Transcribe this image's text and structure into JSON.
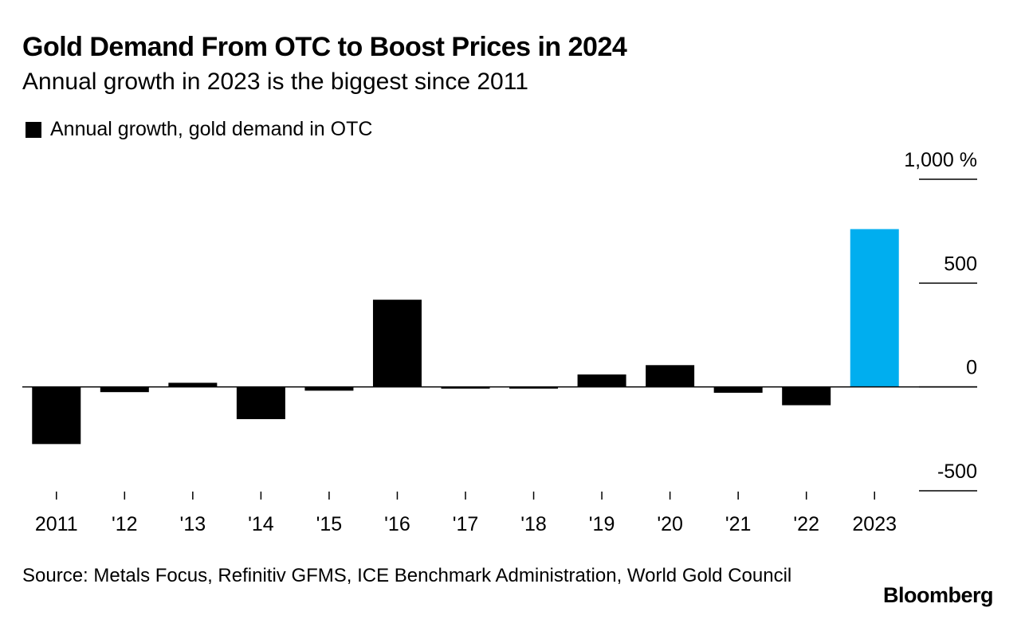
{
  "title": "Gold Demand From OTC to Boost Prices in 2024",
  "subtitle": "Annual growth in 2023 is the biggest since 2011",
  "legend_label": "Annual growth, gold demand in OTC",
  "source": "Source: Metals Focus, Refinitiv GFMS, ICE Benchmark Administration, World Gold Council",
  "brand": "Bloomberg",
  "colors": {
    "bar": "#000000",
    "highlight": "#00aeef",
    "axis": "#000000"
  },
  "chart_data": {
    "type": "bar",
    "title": "Gold Demand From OTC to Boost Prices in 2024",
    "subtitle": "Annual growth in 2023 is the biggest since 2011",
    "xlabel": "",
    "ylabel": "",
    "y_unit": "%",
    "ylim": [
      -500,
      1000
    ],
    "y_ticks": [
      1000,
      500,
      0,
      -500
    ],
    "y_tick_labels": [
      "1,000 %",
      "500",
      "0",
      "-500"
    ],
    "categories": [
      "2011",
      "'12",
      "'13",
      "'14",
      "'15",
      "'16",
      "'17",
      "'18",
      "'19",
      "'20",
      "'21",
      "'22",
      "2023"
    ],
    "series": [
      {
        "name": "Annual growth, gold demand in OTC",
        "values": [
          -275,
          -25,
          20,
          -155,
          -18,
          420,
          -8,
          -8,
          60,
          105,
          -28,
          -88,
          760
        ],
        "highlight_index": 12
      }
    ],
    "legend_position": "top-left",
    "grid": false
  }
}
